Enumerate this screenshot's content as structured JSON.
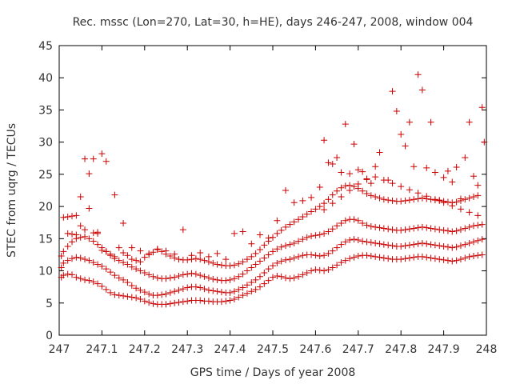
{
  "chart_data": {
    "type": "scatter",
    "title": "Rec. mssc (Lon=270, Lat=30, h=HE), days 246-247, 2008, window 004",
    "xlabel": "GPS time / Days of year 2008",
    "ylabel": "STEC from uqrg / TECUs",
    "xlim": [
      247,
      248
    ],
    "ylim": [
      0,
      45
    ],
    "xticks": [
      247,
      247.1,
      247.2,
      247.3,
      247.4,
      247.5,
      247.6,
      247.7,
      247.8,
      247.9,
      248
    ],
    "xtick_labels": [
      "247",
      "247.1",
      "247.2",
      "247.3",
      "247.4",
      "247.5",
      "247.6",
      "247.7",
      "247.8",
      "247.9",
      "248"
    ],
    "yticks": [
      0,
      5,
      10,
      15,
      20,
      25,
      30,
      35,
      40,
      45
    ],
    "ytick_labels": [
      "0",
      "5",
      "10",
      "15",
      "20",
      "25",
      "30",
      "35",
      "40",
      "45"
    ],
    "grid": false,
    "legend": "none",
    "marker": "plus",
    "marker_color": "#cc0000",
    "series": [
      {
        "x": [
          247.005,
          247.01,
          247.02,
          247.03,
          247.04,
          247.05,
          247.06,
          247.07,
          247.08,
          247.09,
          247.1,
          247.11,
          247.12,
          247.13,
          247.14,
          247.15,
          247.16,
          247.17,
          247.18,
          247.19,
          247.2,
          247.21,
          247.22,
          247.23,
          247.24,
          247.25,
          247.26,
          247.27,
          247.28,
          247.29,
          247.3,
          247.31,
          247.32,
          247.33,
          247.34,
          247.35,
          247.36,
          247.37,
          247.38,
          247.39,
          247.4,
          247.41,
          247.42,
          247.43,
          247.44,
          247.45,
          247.46,
          247.47,
          247.48,
          247.49,
          247.5,
          247.51,
          247.52,
          247.53,
          247.54,
          247.55,
          247.56,
          247.57,
          247.58,
          247.59,
          247.6,
          247.61,
          247.62,
          247.63,
          247.64,
          247.65,
          247.66,
          247.67,
          247.68,
          247.69,
          247.7,
          247.71,
          247.72,
          247.73,
          247.74,
          247.75,
          247.76,
          247.77,
          247.78,
          247.79,
          247.8,
          247.81,
          247.82,
          247.83,
          247.84,
          247.85,
          247.86,
          247.87,
          247.88,
          247.89,
          247.9,
          247.91,
          247.92,
          247.93,
          247.94,
          247.95,
          247.96,
          247.97,
          247.98,
          247.99
        ],
        "y": [
          9.0,
          9.3,
          9.5,
          9.4,
          9.0,
          8.8,
          8.6,
          8.5,
          8.3,
          8.0,
          7.6,
          7.1,
          6.6,
          6.3,
          6.2,
          6.1,
          6.0,
          5.9,
          5.8,
          5.6,
          5.3,
          5.1,
          4.9,
          4.8,
          4.8,
          4.8,
          4.9,
          5.0,
          5.1,
          5.2,
          5.3,
          5.4,
          5.4,
          5.4,
          5.3,
          5.3,
          5.2,
          5.2,
          5.2,
          5.3,
          5.4,
          5.6,
          5.9,
          6.2,
          6.5,
          6.8,
          7.1,
          7.5,
          8.0,
          8.5,
          9.0,
          9.2,
          9.1,
          8.9,
          8.8,
          8.9,
          9.1,
          9.4,
          9.7,
          10.0,
          10.2,
          10.1,
          10.0,
          10.2,
          10.5,
          10.9,
          11.3,
          11.6,
          11.9,
          12.1,
          12.3,
          12.4,
          12.4,
          12.3,
          12.2,
          12.1,
          12.0,
          11.9,
          11.8,
          11.8,
          11.8,
          11.9,
          12.0,
          12.1,
          12.2,
          12.2,
          12.1,
          12.0,
          11.9,
          11.8,
          11.7,
          11.6,
          11.5,
          11.6,
          11.8,
          12.0,
          12.2,
          12.3,
          12.4,
          12.5
        ]
      },
      {
        "x": [
          247.005,
          247.01,
          247.02,
          247.03,
          247.04,
          247.05,
          247.06,
          247.07,
          247.08,
          247.09,
          247.1,
          247.11,
          247.12,
          247.13,
          247.14,
          247.15,
          247.16,
          247.17,
          247.18,
          247.19,
          247.2,
          247.21,
          247.22,
          247.23,
          247.24,
          247.25,
          247.26,
          247.27,
          247.28,
          247.29,
          247.3,
          247.31,
          247.32,
          247.33,
          247.34,
          247.35,
          247.36,
          247.37,
          247.38,
          247.39,
          247.4,
          247.41,
          247.42,
          247.43,
          247.44,
          247.45,
          247.46,
          247.47,
          247.48,
          247.49,
          247.5,
          247.51,
          247.52,
          247.53,
          247.54,
          247.55,
          247.56,
          247.57,
          247.58,
          247.59,
          247.6,
          247.61,
          247.62,
          247.63,
          247.64,
          247.65,
          247.66,
          247.67,
          247.68,
          247.69,
          247.7,
          247.71,
          247.72,
          247.73,
          247.74,
          247.75,
          247.76,
          247.77,
          247.78,
          247.79,
          247.8,
          247.81,
          247.82,
          247.83,
          247.84,
          247.85,
          247.86,
          247.87,
          247.88,
          247.89,
          247.9,
          247.91,
          247.92,
          247.93,
          247.94,
          247.95,
          247.96,
          247.97,
          247.98,
          247.99
        ],
        "y": [
          10.5,
          11.2,
          11.6,
          11.9,
          12.1,
          12.0,
          11.8,
          11.6,
          11.3,
          11.0,
          10.7,
          10.3,
          9.8,
          9.3,
          8.9,
          8.6,
          8.2,
          7.7,
          7.3,
          7.0,
          6.7,
          6.4,
          6.2,
          6.2,
          6.3,
          6.4,
          6.6,
          6.8,
          7.0,
          7.2,
          7.4,
          7.5,
          7.5,
          7.4,
          7.2,
          7.0,
          6.9,
          6.8,
          6.7,
          6.6,
          6.6,
          6.8,
          7.1,
          7.4,
          7.8,
          8.2,
          8.6,
          9.1,
          9.7,
          10.3,
          10.8,
          11.2,
          11.5,
          11.7,
          11.8,
          12.0,
          12.2,
          12.4,
          12.5,
          12.5,
          12.4,
          12.3,
          12.4,
          12.7,
          13.1,
          13.6,
          14.1,
          14.5,
          14.8,
          14.9,
          14.8,
          14.6,
          14.5,
          14.4,
          14.3,
          14.2,
          14.1,
          14.0,
          13.9,
          13.8,
          13.8,
          13.9,
          14.0,
          14.1,
          14.2,
          14.3,
          14.2,
          14.1,
          14.0,
          13.9,
          13.8,
          13.7,
          13.6,
          13.7,
          13.9,
          14.1,
          14.3,
          14.5,
          14.7,
          14.9
        ]
      },
      {
        "x": [
          247.005,
          247.01,
          247.02,
          247.03,
          247.04,
          247.05,
          247.06,
          247.07,
          247.08,
          247.09,
          247.1,
          247.11,
          247.12,
          247.13,
          247.14,
          247.15,
          247.16,
          247.17,
          247.18,
          247.19,
          247.2,
          247.21,
          247.22,
          247.23,
          247.24,
          247.25,
          247.26,
          247.27,
          247.28,
          247.29,
          247.3,
          247.31,
          247.32,
          247.33,
          247.34,
          247.35,
          247.36,
          247.37,
          247.38,
          247.39,
          247.4,
          247.41,
          247.42,
          247.43,
          247.44,
          247.45,
          247.46,
          247.47,
          247.48,
          247.49,
          247.5,
          247.51,
          247.52,
          247.53,
          247.54,
          247.55,
          247.56,
          247.57,
          247.58,
          247.59,
          247.6,
          247.61,
          247.62,
          247.63,
          247.64,
          247.65,
          247.66,
          247.67,
          247.68,
          247.69,
          247.7,
          247.71,
          247.72,
          247.73,
          247.74,
          247.75,
          247.76,
          247.77,
          247.78,
          247.79,
          247.8,
          247.81,
          247.82,
          247.83,
          247.84,
          247.85,
          247.86,
          247.87,
          247.88,
          247.89,
          247.9,
          247.91,
          247.92,
          247.93,
          247.94,
          247.95,
          247.96,
          247.97,
          247.98,
          247.99
        ],
        "y": [
          12.3,
          13.0,
          13.8,
          14.5,
          15.0,
          15.2,
          15.3,
          15.0,
          14.6,
          14.1,
          13.6,
          13.0,
          12.4,
          11.9,
          11.6,
          11.3,
          11.0,
          10.6,
          10.3,
          10.0,
          9.7,
          9.4,
          9.1,
          8.9,
          8.8,
          8.8,
          8.9,
          9.0,
          9.2,
          9.4,
          9.5,
          9.6,
          9.5,
          9.3,
          9.1,
          8.9,
          8.7,
          8.6,
          8.5,
          8.5,
          8.6,
          8.8,
          9.1,
          9.5,
          10.0,
          10.5,
          11.0,
          11.5,
          12.0,
          12.5,
          13.0,
          13.4,
          13.7,
          13.9,
          14.1,
          14.3,
          14.6,
          14.9,
          15.2,
          15.4,
          15.5,
          15.6,
          15.8,
          16.1,
          16.5,
          17.0,
          17.4,
          17.8,
          18.0,
          18.0,
          17.8,
          17.4,
          17.1,
          16.9,
          16.8,
          16.7,
          16.6,
          16.5,
          16.4,
          16.3,
          16.3,
          16.4,
          16.5,
          16.6,
          16.7,
          16.8,
          16.7,
          16.6,
          16.5,
          16.4,
          16.3,
          16.2,
          16.1,
          16.2,
          16.4,
          16.6,
          16.8,
          17.0,
          17.1,
          17.2
        ]
      },
      {
        "x": [
          247.01,
          247.02,
          247.03,
          247.04,
          247.05,
          247.06,
          247.07,
          247.08,
          247.09,
          247.1,
          247.11,
          247.12,
          247.13,
          247.14,
          247.15,
          247.16,
          247.17,
          247.18,
          247.19,
          247.2,
          247.21,
          247.22,
          247.23,
          247.24,
          247.25,
          247.26,
          247.27,
          247.28,
          247.29,
          247.3,
          247.31,
          247.32,
          247.33,
          247.34,
          247.35,
          247.36,
          247.37,
          247.38,
          247.39,
          247.4,
          247.41,
          247.42,
          247.43,
          247.44,
          247.45,
          247.46,
          247.47,
          247.48,
          247.49,
          247.5,
          247.51,
          247.52,
          247.53,
          247.54,
          247.55,
          247.56,
          247.57,
          247.58,
          247.59,
          247.6,
          247.61,
          247.62,
          247.63,
          247.64,
          247.65,
          247.66,
          247.67,
          247.68,
          247.69,
          247.7,
          247.71,
          247.72,
          247.73,
          247.74,
          247.75,
          247.76,
          247.77,
          247.78,
          247.79,
          247.8,
          247.81,
          247.82,
          247.83,
          247.84,
          247.85,
          247.86,
          247.87,
          247.88,
          247.89,
          247.9,
          247.91,
          247.92,
          247.93,
          247.94,
          247.95,
          247.96,
          247.97,
          247.98
        ],
        "y": [
          18.3,
          18.4,
          18.5,
          18.6,
          17.0,
          16.4,
          19.7,
          15.9,
          15.8,
          13.2,
          13.0,
          12.6,
          12.2,
          13.6,
          12.8,
          12.4,
          11.8,
          11.6,
          11.4,
          12.1,
          12.5,
          12.9,
          13.4,
          13.0,
          12.6,
          12.3,
          12.0,
          11.8,
          11.7,
          11.7,
          11.8,
          11.9,
          11.8,
          11.6,
          11.4,
          11.2,
          11.0,
          10.9,
          10.8,
          10.8,
          10.9,
          11.1,
          11.4,
          11.8,
          12.2,
          12.7,
          13.3,
          14.0,
          14.6,
          15.2,
          15.8,
          16.3,
          16.8,
          17.2,
          17.6,
          18.0,
          18.4,
          18.8,
          19.2,
          19.6,
          20.0,
          20.5,
          21.1,
          21.8,
          22.4,
          22.9,
          23.2,
          23.3,
          23.1,
          22.8,
          22.4,
          22.0,
          21.7,
          21.5,
          21.3,
          21.1,
          21.0,
          20.9,
          20.8,
          20.8,
          20.9,
          21.0,
          21.1,
          21.2,
          21.3,
          21.2,
          21.1,
          21.0,
          20.9,
          20.8,
          20.7,
          20.6,
          20.7,
          20.9,
          21.1,
          21.3,
          21.5,
          21.7
        ]
      },
      {
        "x": [
          247.02,
          247.03,
          247.04,
          247.05,
          247.06,
          247.07,
          247.08,
          247.09,
          247.1,
          247.11,
          247.13,
          247.15,
          247.17,
          247.19,
          247.21,
          247.23,
          247.25,
          247.27,
          247.29,
          247.31,
          247.33,
          247.35,
          247.37,
          247.39,
          247.41,
          247.43,
          247.45,
          247.47,
          247.49,
          247.51,
          247.53,
          247.55,
          247.57,
          247.59,
          247.61,
          247.62,
          247.63,
          247.64,
          247.65,
          247.66,
          247.67,
          247.68,
          247.69,
          247.7,
          247.71,
          247.72,
          247.73,
          247.74,
          247.75,
          247.77,
          247.78,
          247.79,
          247.8,
          247.81,
          247.82,
          247.83,
          247.84,
          247.85,
          247.86,
          247.87,
          247.88,
          247.89,
          247.9,
          247.91,
          247.92,
          247.93,
          247.94,
          247.95,
          247.96,
          247.97,
          247.98,
          247.99
        ],
        "y": [
          15.8,
          15.7,
          15.6,
          21.5,
          27.4,
          25.1,
          27.4,
          16.0,
          28.2,
          27.0,
          21.8,
          17.4,
          13.6,
          13.1,
          12.7,
          13.3,
          13.1,
          12.6,
          16.4,
          12.4,
          12.8,
          12.2,
          12.7,
          11.8,
          15.8,
          16.1,
          14.2,
          15.6,
          15.1,
          17.8,
          22.5,
          20.6,
          20.9,
          21.4,
          23.0,
          30.3,
          26.8,
          26.6,
          27.6,
          25.3,
          32.8,
          25.1,
          29.7,
          25.7,
          25.4,
          24.2,
          23.6,
          26.2,
          28.4,
          24.1,
          37.9,
          34.8,
          31.2,
          29.4,
          33.1,
          26.2,
          40.5,
          38.1,
          26.0,
          33.1,
          25.3,
          21.0,
          24.5,
          25.5,
          23.8,
          26.1,
          21.2,
          27.6,
          33.1,
          24.7,
          23.3,
          35.4
        ]
      },
      {
        "x": [
          247.62,
          247.64,
          247.66,
          247.68,
          247.7,
          247.72,
          247.74,
          247.76,
          247.78,
          247.8,
          247.82,
          247.84,
          247.86,
          247.88,
          247.9,
          247.92,
          247.94,
          247.96,
          247.98,
          247.995
        ],
        "y": [
          19.5,
          20.5,
          21.5,
          22.5,
          23.5,
          24.3,
          24.6,
          24.1,
          23.6,
          23.1,
          22.6,
          22.1,
          21.6,
          21.1,
          20.6,
          20.1,
          19.6,
          19.1,
          18.6,
          30.0
        ]
      }
    ]
  }
}
